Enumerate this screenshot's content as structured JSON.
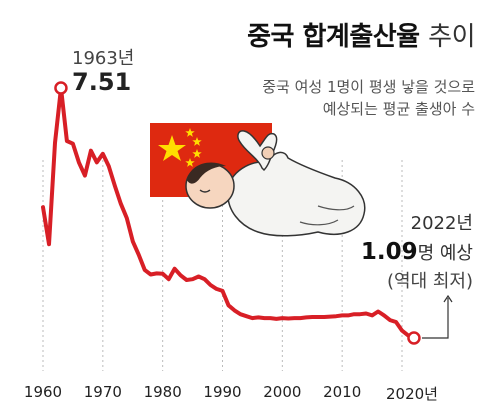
{
  "title": {
    "main": "중국 합계출산율",
    "suffix": "추이"
  },
  "subtitle": {
    "line1": "중국 여성 1명이 평생 낳을 것으로",
    "line2": "예상되는 평균 출생아 수"
  },
  "annotations": {
    "peak_year": "1963년",
    "peak_value": "7.51",
    "end_year": "2022년",
    "end_value": "1.09",
    "end_unit": "명 예상",
    "end_record": "(역대 최저)"
  },
  "colors": {
    "line": "#d81f26",
    "flag_red": "#de2910",
    "flag_star": "#ffde00",
    "gridline": "#bbbbbb"
  },
  "illustration": {
    "flag": "china-flag",
    "baby": "sleeping-baby-illustration"
  },
  "chart_data": {
    "type": "line",
    "title": "중국 합계출산율 추이",
    "xlabel": "",
    "ylabel": "",
    "xlim": [
      1960,
      2022
    ],
    "ylim": [
      0,
      8
    ],
    "x_tick_labels": [
      "1960",
      "1970",
      "1980",
      "1990",
      "2000",
      "2010",
      "2020년"
    ],
    "x_ticks": [
      1960,
      1970,
      1980,
      1990,
      2000,
      2010,
      2020
    ],
    "grid": "vertical-dotted",
    "series": [
      {
        "x": [
          1960,
          1961,
          1962,
          1963,
          1964,
          1965,
          1966,
          1967,
          1968,
          1969,
          1970,
          1971,
          1972,
          1973,
          1974,
          1975,
          1976,
          1977,
          1978,
          1979,
          1980,
          1981,
          1982,
          1983,
          1984,
          1985,
          1986,
          1987,
          1988,
          1989,
          1990,
          1991,
          1992,
          1993,
          1994,
          1995,
          1996,
          1997,
          1998,
          1999,
          2000,
          2001,
          2002,
          2003,
          2004,
          2005,
          2006,
          2007,
          2008,
          2009,
          2010,
          2011,
          2012,
          2013,
          2014,
          2015,
          2016,
          2017,
          2018,
          2019,
          2020,
          2021,
          2022
        ],
        "y": [
          4.45,
          3.5,
          6.1,
          7.51,
          6.15,
          6.08,
          5.6,
          5.26,
          5.9,
          5.6,
          5.82,
          5.5,
          5.0,
          4.54,
          4.17,
          3.57,
          3.23,
          2.84,
          2.72,
          2.75,
          2.74,
          2.6,
          2.87,
          2.7,
          2.58,
          2.6,
          2.67,
          2.6,
          2.45,
          2.35,
          2.3,
          1.93,
          1.8,
          1.7,
          1.65,
          1.6,
          1.62,
          1.6,
          1.6,
          1.58,
          1.6,
          1.59,
          1.6,
          1.6,
          1.62,
          1.63,
          1.63,
          1.63,
          1.64,
          1.65,
          1.67,
          1.67,
          1.7,
          1.7,
          1.72,
          1.67,
          1.77,
          1.67,
          1.55,
          1.5,
          1.28,
          1.16,
          1.09
        ]
      }
    ],
    "highlight_points": [
      {
        "x": 1963,
        "y": 7.51
      },
      {
        "x": 2022,
        "y": 1.09
      }
    ]
  }
}
